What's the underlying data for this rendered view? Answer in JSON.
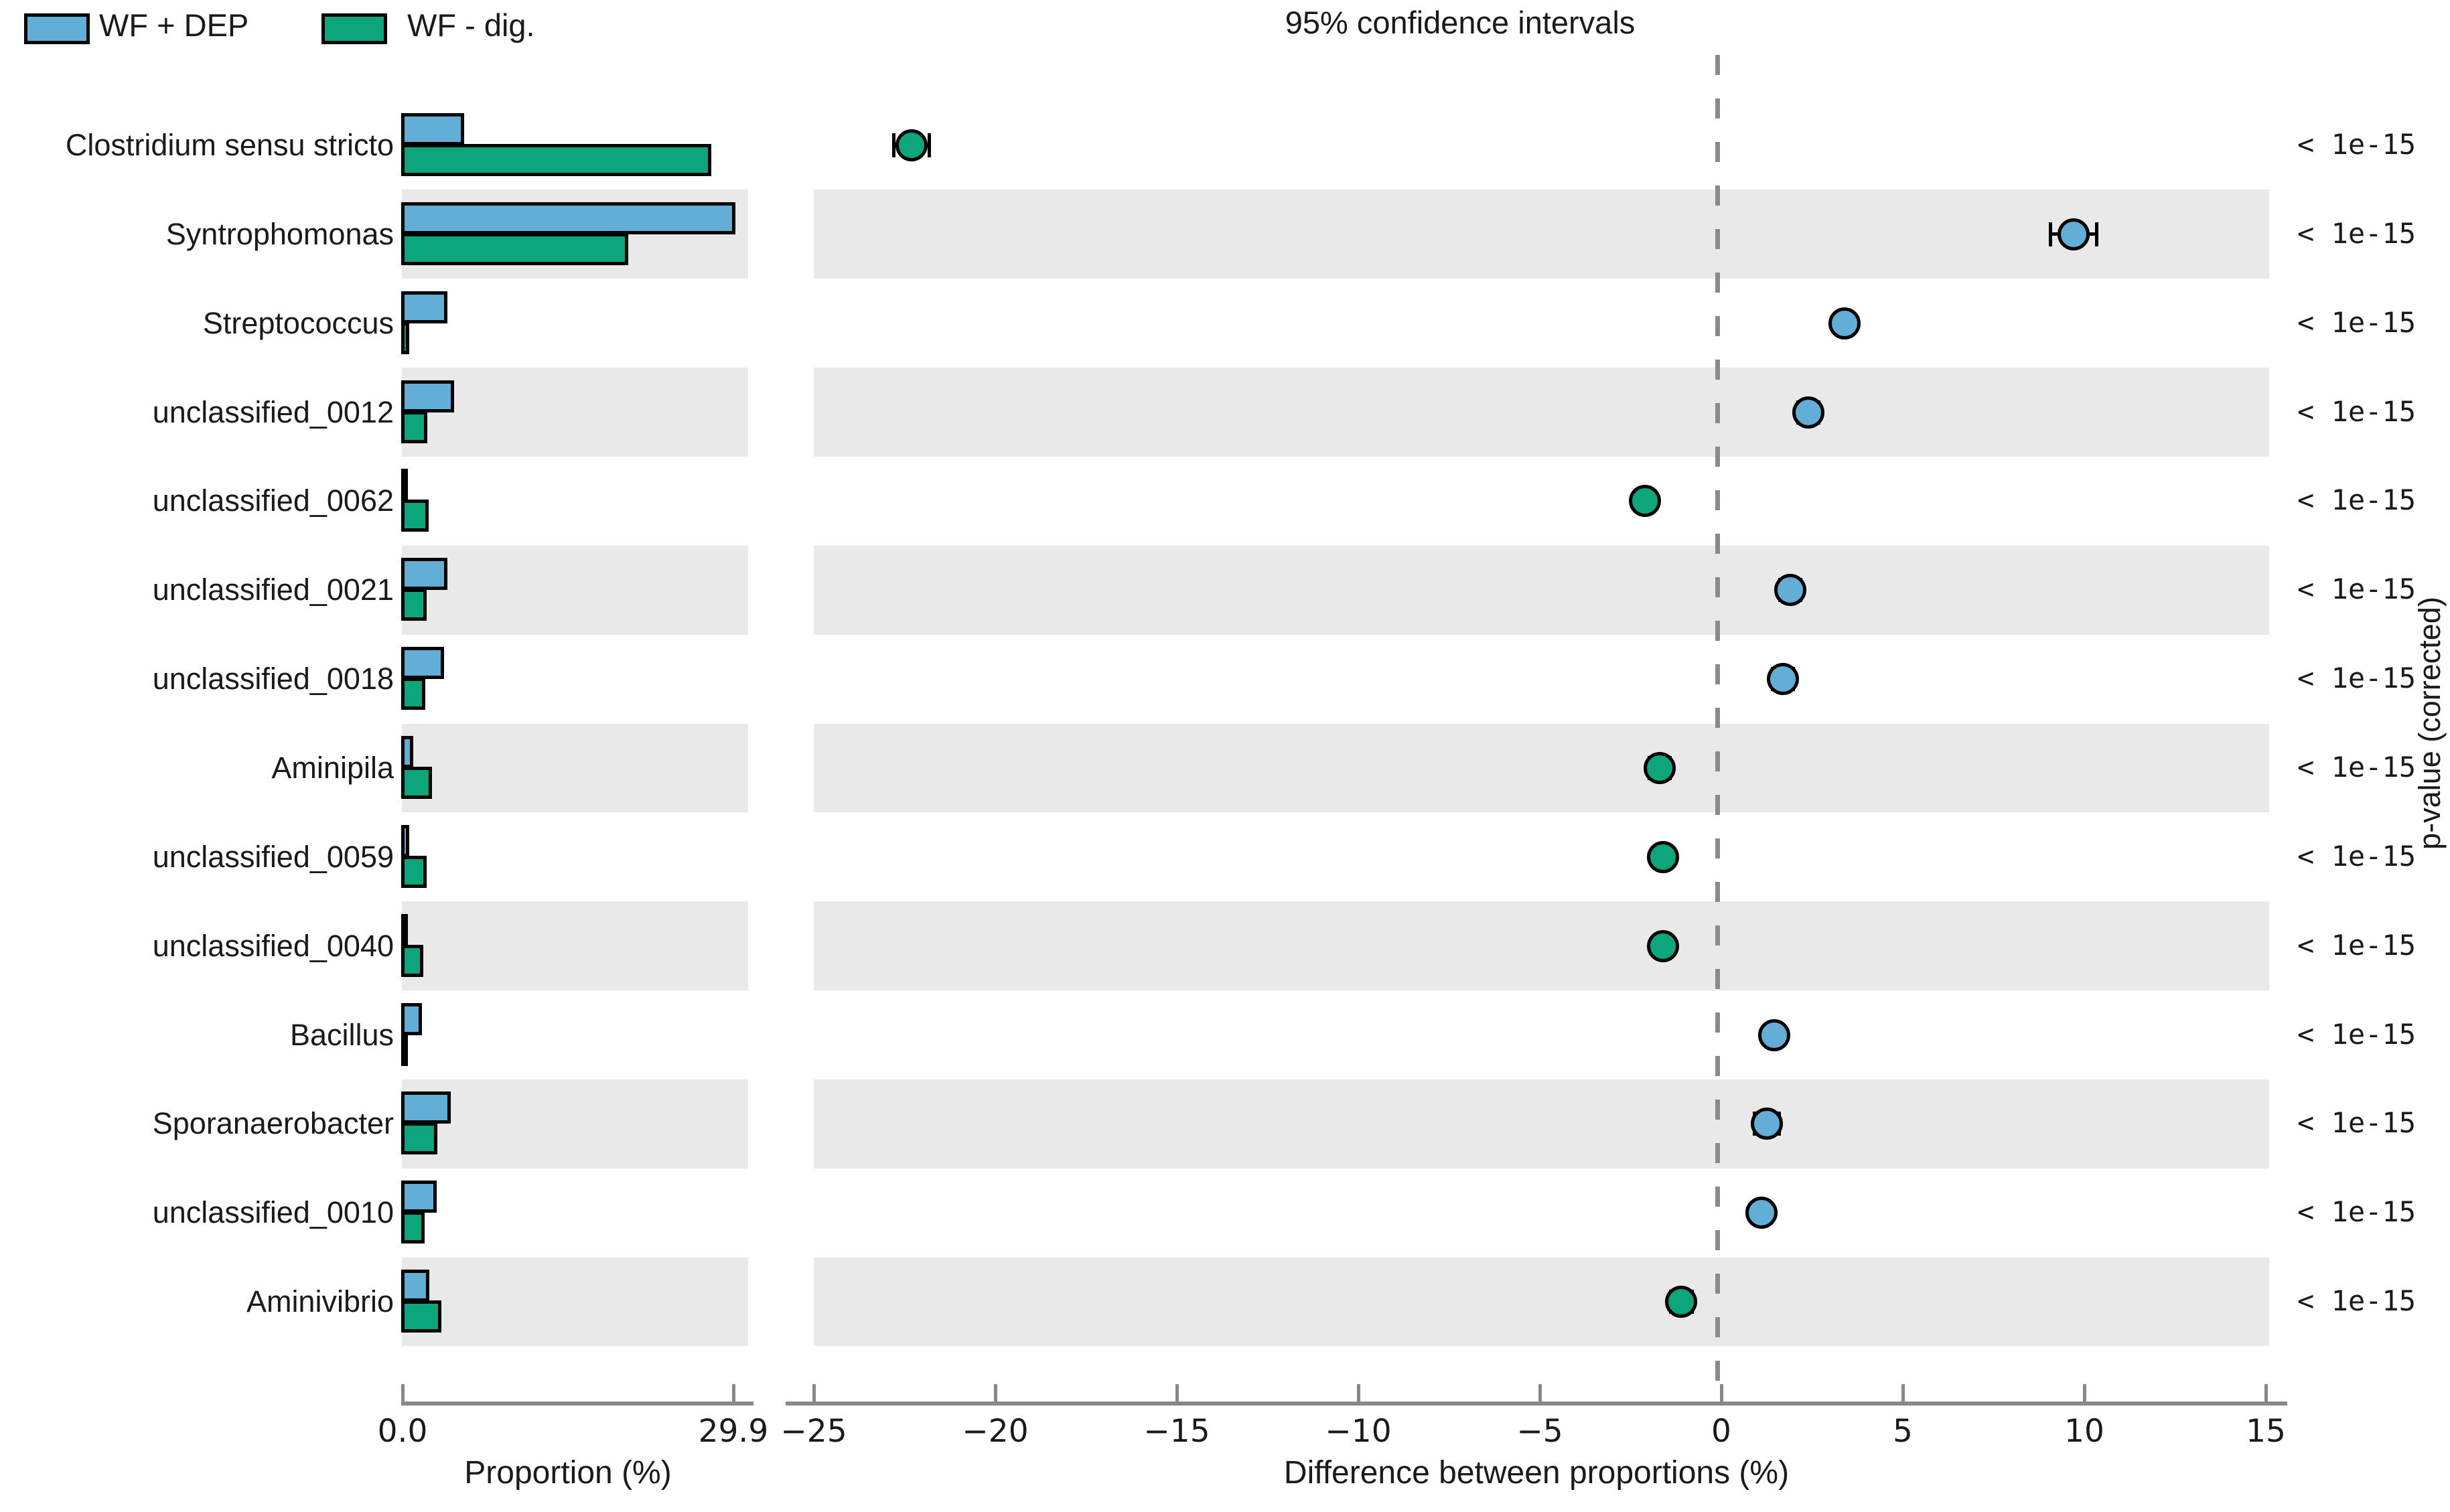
{
  "legend": {
    "items": [
      {
        "label": "WF + DEP",
        "color": "#63aed6"
      },
      {
        "label": "WF - dig.",
        "color": "#0ca57c"
      }
    ]
  },
  "right_panel_title": "95% confidence intervals",
  "axes": {
    "left": {
      "xlabel": "Proportion (%)",
      "tick_labels": [
        "0.0",
        "29.9"
      ],
      "tick_values": [
        0,
        29.9
      ],
      "xlim": [
        0,
        29.9
      ]
    },
    "right": {
      "xlabel": "Difference between proportions (%)",
      "tick_labels": [
        "−25",
        "−20",
        "−15",
        "−10",
        "−5",
        "0",
        "5",
        "10",
        "15"
      ],
      "tick_values": [
        -25,
        -20,
        -15,
        -10,
        -5,
        0,
        5,
        10,
        15
      ],
      "xlim": [
        -25.3,
        15.1
      ],
      "zero_line": "dashed",
      "right_axis_label": "p-value (corrected)"
    }
  },
  "chart_data": {
    "type": "bar",
    "subtype": "extended-error-bar (STAMP)",
    "orientation": "horizontal",
    "grid": "alternating-row-bands",
    "legend_position": "top-left",
    "series_names": [
      "WF + DEP",
      "WF - dig."
    ],
    "series_colors": {
      "WF + DEP": "#63aed6",
      "WF - dig.": "#0ca57c"
    },
    "left_chart_xlabel": "Proportion (%)",
    "left_chart_xlim": [
      0,
      29.9
    ],
    "right_chart_title": "95% confidence intervals",
    "right_chart_xlabel": "Difference between proportions (%)",
    "right_chart_xlim": [
      -25.3,
      15.1
    ],
    "rows": [
      {
        "name": "Clostridium sensu stricto",
        "wf_dep": 5.4,
        "wf_dig": 27.7,
        "diff": -22.3,
        "ci": 0.5,
        "dot": "WF - dig.",
        "p_value": "< 1e-15"
      },
      {
        "name": "Syntrophomonas",
        "wf_dep": 29.9,
        "wf_dig": 20.2,
        "diff": 9.7,
        "ci": 0.65,
        "dot": "WF + DEP",
        "p_value": "< 1e-15"
      },
      {
        "name": "Streptococcus",
        "wf_dep": 3.85,
        "wf_dig": 0.4,
        "diff": 3.4,
        "ci": 0.2,
        "dot": "WF + DEP",
        "p_value": "< 1e-15"
      },
      {
        "name": "unclassified_0012",
        "wf_dep": 4.45,
        "wf_dig": 2.05,
        "diff": 2.4,
        "ci": 0.3,
        "dot": "WF + DEP",
        "p_value": "< 1e-15"
      },
      {
        "name": "unclassified_0062",
        "wf_dep": 0.1,
        "wf_dig": 2.2,
        "diff": -2.1,
        "ci": 0.15,
        "dot": "WF - dig.",
        "p_value": "< 1e-15"
      },
      {
        "name": "unclassified_0021",
        "wf_dep": 3.9,
        "wf_dig": 2.0,
        "diff": 1.9,
        "ci": 0.3,
        "dot": "WF + DEP",
        "p_value": "< 1e-15"
      },
      {
        "name": "unclassified_0018",
        "wf_dep": 3.6,
        "wf_dig": 1.9,
        "diff": 1.7,
        "ci": 0.3,
        "dot": "WF + DEP",
        "p_value": "< 1e-15"
      },
      {
        "name": "Aminipila",
        "wf_dep": 0.8,
        "wf_dig": 2.5,
        "diff": -1.7,
        "ci": 0.3,
        "dot": "WF - dig.",
        "p_value": "< 1e-15"
      },
      {
        "name": "unclassified_0059",
        "wf_dep": 0.4,
        "wf_dig": 2.0,
        "diff": -1.6,
        "ci": 0.2,
        "dot": "WF - dig.",
        "p_value": "< 1e-15"
      },
      {
        "name": "unclassified_0040",
        "wf_dep": 0.1,
        "wf_dig": 1.7,
        "diff": -1.6,
        "ci": 0.15,
        "dot": "WF - dig.",
        "p_value": "< 1e-15"
      },
      {
        "name": "Bacillus",
        "wf_dep": 1.55,
        "wf_dig": 0.1,
        "diff": 1.45,
        "ci": 0.25,
        "dot": "WF + DEP",
        "p_value": "< 1e-15"
      },
      {
        "name": "Sporanaerobacter",
        "wf_dep": 4.2,
        "wf_dig": 2.95,
        "diff": 1.25,
        "ci": 0.35,
        "dot": "WF + DEP",
        "p_value": "< 1e-15"
      },
      {
        "name": "unclassified_0010",
        "wf_dep": 2.9,
        "wf_dig": 1.8,
        "diff": 1.1,
        "ci": 0.25,
        "dot": "WF + DEP",
        "p_value": "< 1e-15"
      },
      {
        "name": "Aminivibrio",
        "wf_dep": 2.25,
        "wf_dig": 3.3,
        "diff": -1.1,
        "ci": 0.3,
        "dot": "WF - dig.",
        "p_value": "< 1e-15"
      }
    ]
  }
}
